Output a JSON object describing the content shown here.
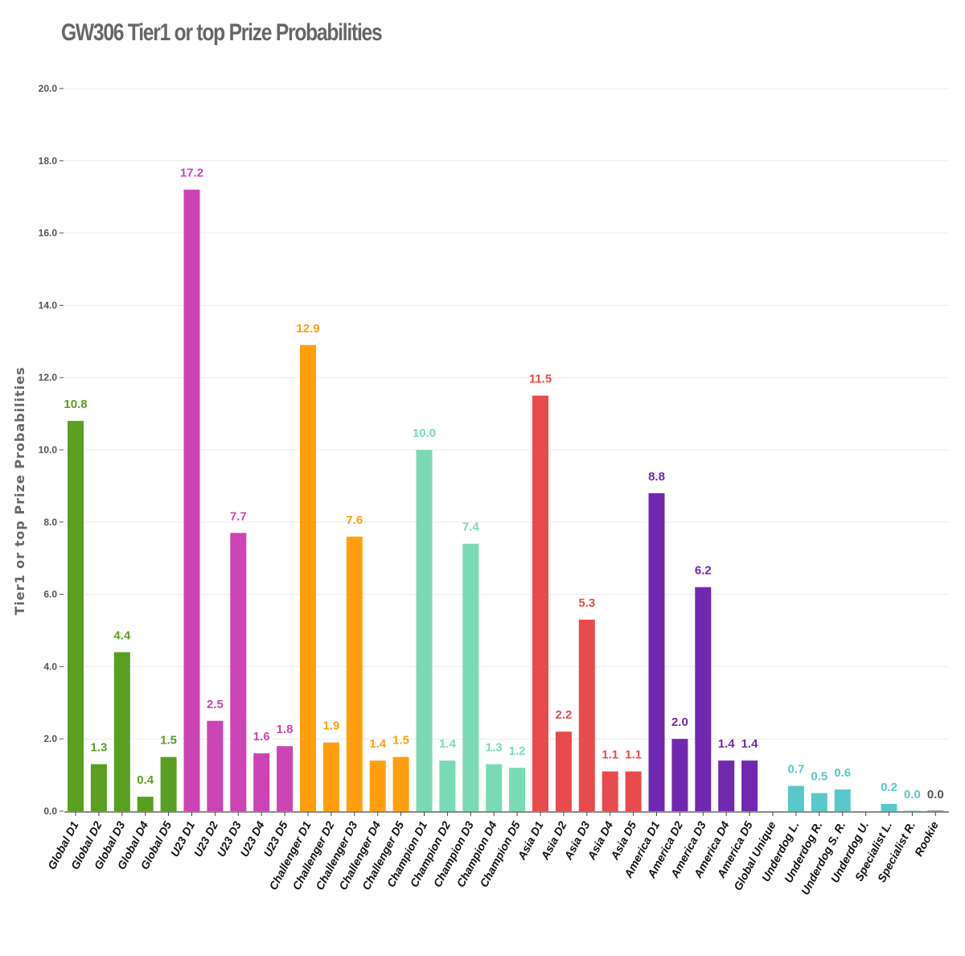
{
  "chart_data": {
    "type": "bar",
    "title": "GW306 Tier1 or top Prize Probabilities",
    "xlabel": "",
    "ylabel": "Tier1 or top Prize Probabilities",
    "ylim": [
      0,
      20
    ],
    "yticks": [
      "0.0",
      "2.0",
      "4.0",
      "6.0",
      "8.0",
      "10.0",
      "12.0",
      "14.0",
      "16.0",
      "18.0",
      "20.0"
    ],
    "grid": true,
    "categories": [
      "Global D1",
      "Global D2",
      "Global D3",
      "Global D4",
      "Global D5",
      "U23 D1",
      "U23 D2",
      "U23 D3",
      "U23 D4",
      "U23 D5",
      "Challenger D1",
      "Challenger D2",
      "Challenger D3",
      "Challenger D4",
      "Challenger D5",
      "Champion D1",
      "Champion D2",
      "Champion D3",
      "Champion D4",
      "Champion D5",
      "Asia D1",
      "Asia D2",
      "Asia D3",
      "Asia D4",
      "Asia D5",
      "America D1",
      "America D2",
      "America D3",
      "America D4",
      "America D5",
      "Global Unique",
      "Underdog L.",
      "Underdog R.",
      "Underdog S. R.",
      "Underdog U.",
      "Specialist L.",
      "Specialist R.",
      "Rookie"
    ],
    "values": [
      10.8,
      1.3,
      4.4,
      0.4,
      1.5,
      17.2,
      2.5,
      7.7,
      1.6,
      1.8,
      12.9,
      1.9,
      7.6,
      1.4,
      1.5,
      10.0,
      1.4,
      7.4,
      1.3,
      1.2,
      11.5,
      2.2,
      5.3,
      1.1,
      1.1,
      8.8,
      2.0,
      6.2,
      1.4,
      1.4,
      null,
      0.7,
      0.5,
      0.6,
      null,
      0.2,
      0.0,
      0.0
    ],
    "value_labels": [
      "10.8",
      "1.3",
      "4.4",
      "0.4",
      "1.5",
      "17.2",
      "2.5",
      "7.7",
      "1.6",
      "1.8",
      "12.9",
      "1.9",
      "7.6",
      "1.4",
      "1.5",
      "10.0",
      "1.4",
      "7.4",
      "1.3",
      "1.2",
      "11.5",
      "2.2",
      "5.3",
      "1.1",
      "1.1",
      "8.8",
      "2.0",
      "6.2",
      "1.4",
      "1.4",
      "",
      "0.7",
      "0.5",
      "0.6",
      "",
      "0.2",
      "0.0",
      "0.0"
    ],
    "group_colors": {
      "global": "#5a9e22",
      "u23": "#cc44b4",
      "challenger": "#ff9f10",
      "champion": "#79dbb6",
      "asia": "#e84b4e",
      "america": "#7028b0",
      "underdog": "#5ac8ca",
      "rookie": "#555555"
    },
    "bar_groups": [
      "global",
      "global",
      "global",
      "global",
      "global",
      "u23",
      "u23",
      "u23",
      "u23",
      "u23",
      "challenger",
      "challenger",
      "challenger",
      "challenger",
      "challenger",
      "champion",
      "champion",
      "champion",
      "champion",
      "champion",
      "asia",
      "asia",
      "asia",
      "asia",
      "asia",
      "america",
      "america",
      "america",
      "america",
      "america",
      "underdog",
      "underdog",
      "underdog",
      "underdog",
      "underdog",
      "underdog",
      "underdog",
      "rookie"
    ]
  }
}
